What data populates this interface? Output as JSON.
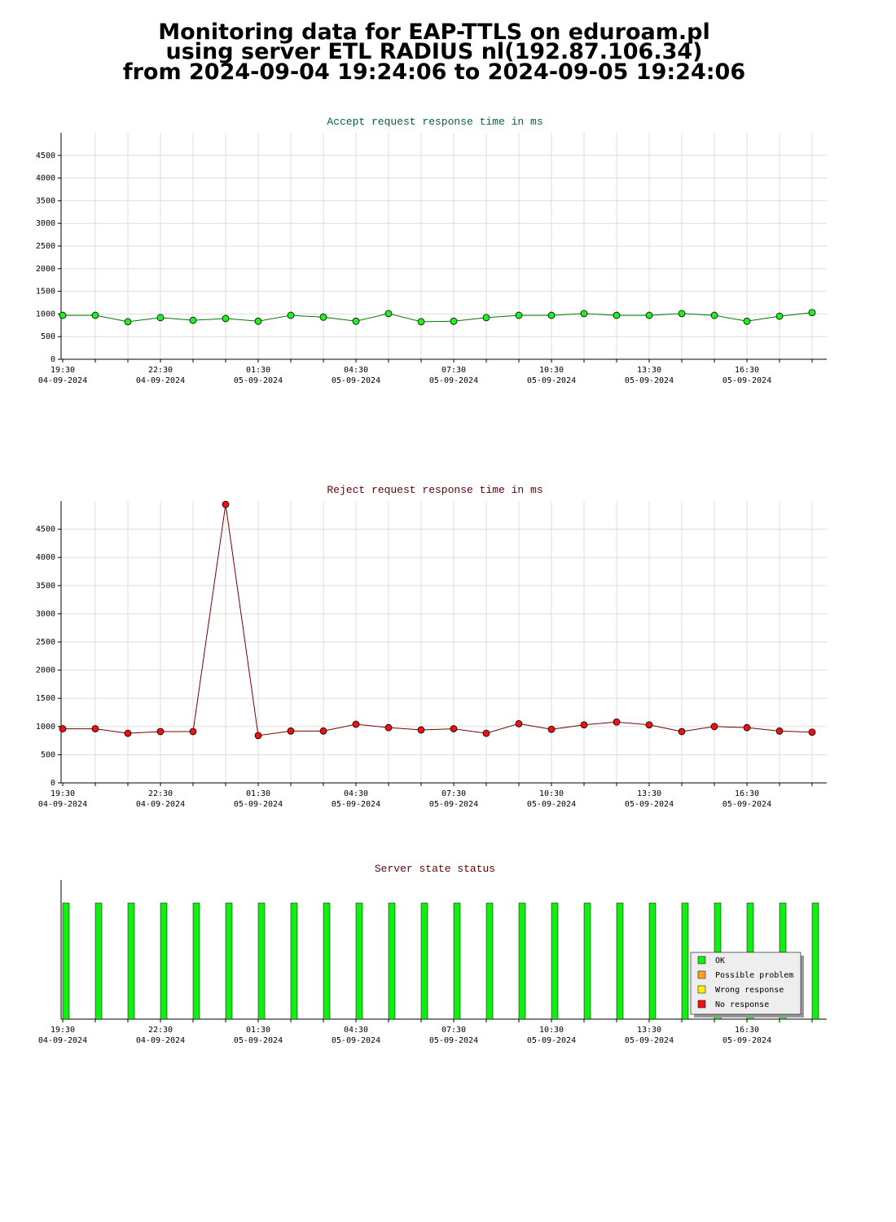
{
  "title_lines": [
    "Monitoring data for EAP-TTLS on eduroam.pl",
    "using server ETL RADIUS nl(192.87.106.34)",
    "from 2024-09-04 19:24:06 to 2024-09-05 19:24:06"
  ],
  "chart_data": [
    {
      "type": "line",
      "title": "Accept request response time in ms",
      "title_color": "#006633",
      "categories": [
        "19:30",
        null,
        null,
        "22:30",
        null,
        null,
        "01:30",
        null,
        null,
        "04:30",
        null,
        null,
        "07:30",
        null,
        null,
        "10:30",
        null,
        null,
        "13:30",
        null,
        null,
        "16:30",
        null,
        null
      ],
      "category_dates": [
        "04-09-2024",
        null,
        null,
        "04-09-2024",
        null,
        null,
        "05-09-2024",
        null,
        null,
        "05-09-2024",
        null,
        null,
        "05-09-2024",
        null,
        null,
        "05-09-2024",
        null,
        null,
        "05-09-2024",
        null,
        null,
        "05-09-2024",
        null,
        null
      ],
      "series": [
        {
          "color": "#22ee22",
          "line_color": "#007700",
          "values": [
            970,
            970,
            830,
            920,
            860,
            900,
            840,
            970,
            930,
            840,
            1010,
            830,
            840,
            920,
            970,
            970,
            1010,
            970,
            970,
            1010,
            970,
            840,
            950,
            1030
          ]
        }
      ],
      "ylim": [
        0,
        5000
      ],
      "yticks": [
        0,
        500,
        1000,
        1500,
        2000,
        2500,
        3000,
        3500,
        4000,
        4500
      ],
      "grid": true
    },
    {
      "type": "line",
      "title": "Reject request response time in ms",
      "title_color": "#660000",
      "categories": [
        "19:30",
        null,
        null,
        "22:30",
        null,
        null,
        "01:30",
        null,
        null,
        "04:30",
        null,
        null,
        "07:30",
        null,
        null,
        "10:30",
        null,
        null,
        "13:30",
        null,
        null,
        "16:30",
        null,
        null
      ],
      "category_dates": [
        "04-09-2024",
        null,
        null,
        "04-09-2024",
        null,
        null,
        "05-09-2024",
        null,
        null,
        "05-09-2024",
        null,
        null,
        "05-09-2024",
        null,
        null,
        "05-09-2024",
        null,
        null,
        "05-09-2024",
        null,
        null,
        "05-09-2024",
        null,
        null
      ],
      "series": [
        {
          "color": "#ee1111",
          "line_color": "#770000",
          "values": [
            960,
            960,
            880,
            910,
            910,
            4940,
            840,
            920,
            920,
            1040,
            980,
            940,
            960,
            880,
            1050,
            950,
            1030,
            1080,
            1030,
            910,
            1000,
            980,
            920,
            900
          ]
        }
      ],
      "ylim": [
        0,
        5000
      ],
      "yticks": [
        0,
        500,
        1000,
        1500,
        2000,
        2500,
        3000,
        3500,
        4000,
        4500
      ],
      "grid": true
    },
    {
      "type": "bar",
      "title": "Server state status",
      "title_color": "#660000",
      "categories": [
        "19:30",
        null,
        null,
        "22:30",
        null,
        null,
        "01:30",
        null,
        null,
        "04:30",
        null,
        null,
        "07:30",
        null,
        null,
        "10:30",
        null,
        null,
        "13:30",
        null,
        null,
        "16:30",
        null,
        null
      ],
      "category_dates": [
        "04-09-2024",
        null,
        null,
        "04-09-2024",
        null,
        null,
        "05-09-2024",
        null,
        null,
        "05-09-2024",
        null,
        null,
        "05-09-2024",
        null,
        null,
        "05-09-2024",
        null,
        null,
        "05-09-2024",
        null,
        null,
        "05-09-2024",
        null,
        null
      ],
      "series": [
        {
          "name": "OK",
          "color": "#11ee11",
          "values": [
            1,
            1,
            1,
            1,
            1,
            1,
            1,
            1,
            1,
            1,
            1,
            1,
            1,
            1,
            1,
            1,
            1,
            1,
            1,
            1,
            1,
            1,
            1,
            1
          ]
        },
        {
          "name": "Possible problem",
          "color": "#ffa020",
          "values": [
            0,
            0,
            0,
            0,
            0,
            0,
            0,
            0,
            0,
            0,
            0,
            0,
            0,
            0,
            0,
            0,
            0,
            0,
            0,
            0,
            0,
            0,
            0,
            0
          ]
        },
        {
          "name": "Wrong response",
          "color": "#ffee00",
          "values": [
            0,
            0,
            0,
            0,
            0,
            0,
            0,
            0,
            0,
            0,
            0,
            0,
            0,
            0,
            0,
            0,
            0,
            0,
            0,
            0,
            0,
            0,
            0,
            0
          ]
        },
        {
          "name": "No response",
          "color": "#ee1111",
          "values": [
            0,
            0,
            0,
            0,
            0,
            0,
            0,
            0,
            0,
            0,
            0,
            0,
            0,
            0,
            0,
            0,
            0,
            0,
            0,
            0,
            0,
            0,
            0,
            0
          ]
        }
      ],
      "ylim": [
        0,
        1.2
      ],
      "grid": false,
      "legend": "lower right"
    }
  ]
}
